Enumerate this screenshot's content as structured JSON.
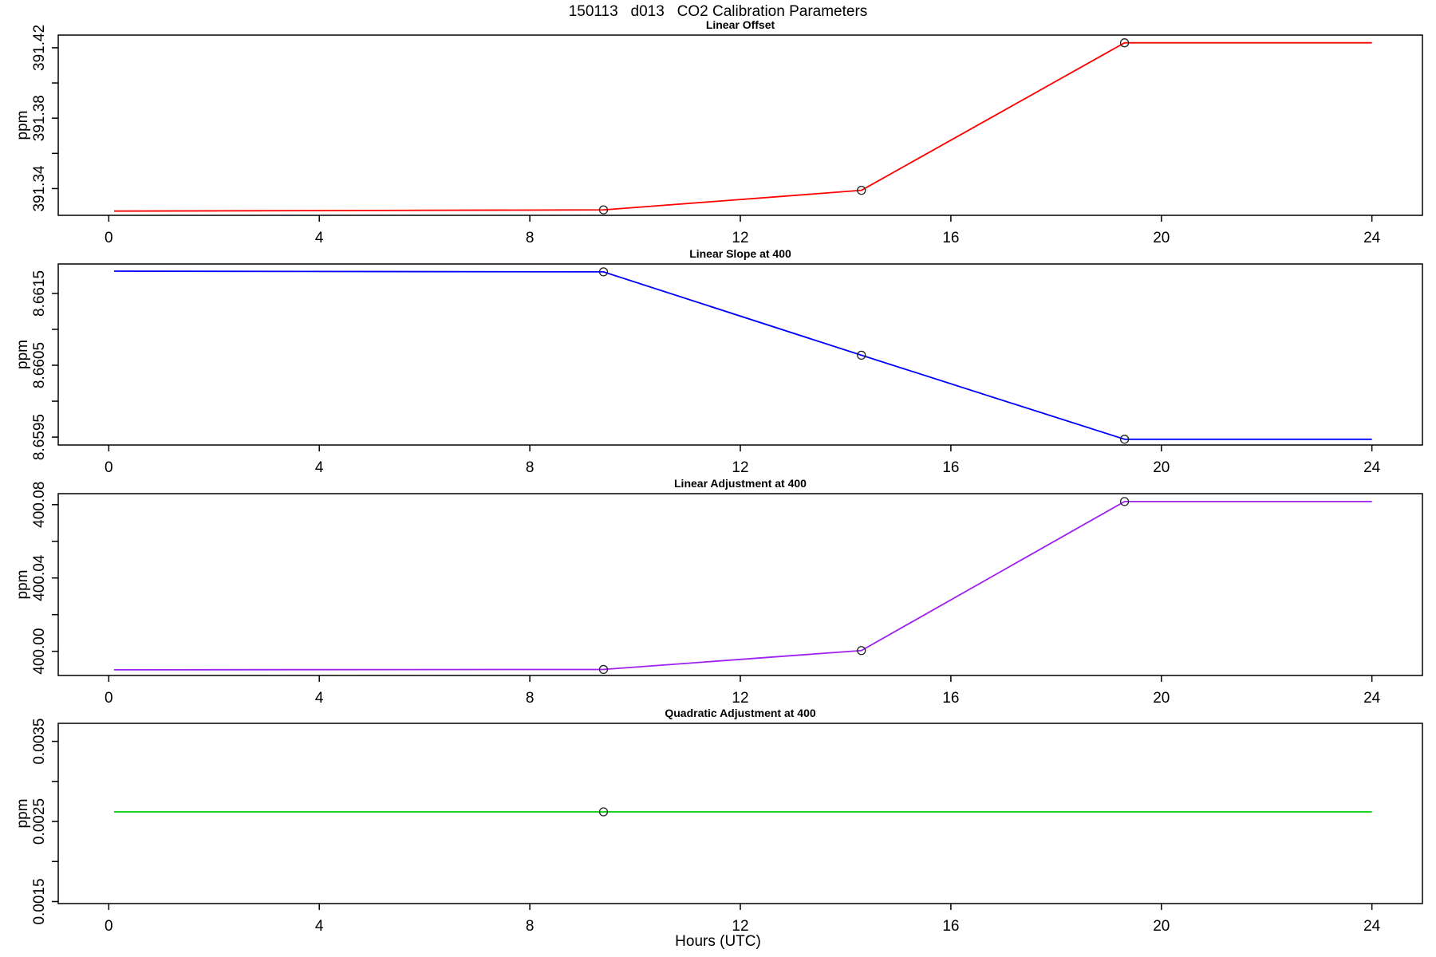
{
  "page": {
    "main_title": "150113   d013   CO2 Calibration Parameters",
    "x_axis_title": "Hours (UTC)",
    "background_color": "#FFFFFF",
    "frame_color": "#000000",
    "marker_style": "open-circle",
    "marker_color": "#222222"
  },
  "chart_data": [
    {
      "type": "line",
      "title": "Linear Offset",
      "ylabel": "ppm",
      "line_color": "#FF0000",
      "x": [
        0.1,
        9.4,
        14.3,
        19.3,
        24
      ],
      "y": [
        391.3272,
        391.3279,
        391.339,
        391.4228,
        391.4228
      ],
      "markers": {
        "x": [
          9.4,
          14.3,
          19.3
        ],
        "y": [
          391.3279,
          391.339,
          391.4228
        ]
      },
      "xlim": [
        -0.96,
        24.96
      ],
      "ylim": [
        391.3248,
        391.4272
      ],
      "xticks": [
        0,
        4,
        8,
        12,
        16,
        20,
        24
      ],
      "xtick_labels": [
        "0",
        "4",
        "8",
        "12",
        "16",
        "20",
        "24"
      ],
      "yticks": [
        391.34,
        391.36,
        391.38,
        391.4,
        391.42
      ],
      "ytick_labels": [
        "391.34",
        "",
        "391.38",
        "",
        "391.42"
      ],
      "grid": false,
      "legend": "none"
    },
    {
      "type": "line",
      "title": "Linear Slope at 400",
      "ylabel": "ppm",
      "line_color": "#0000FF",
      "x": [
        0.1,
        9.4,
        14.3,
        19.3,
        24
      ],
      "y": [
        8.66181,
        8.6618,
        8.66064,
        8.65947,
        8.65947
      ],
      "markers": {
        "x": [
          9.4,
          14.3,
          19.3
        ],
        "y": [
          8.6618,
          8.66064,
          8.65947
        ]
      },
      "xlim": [
        -0.96,
        24.96
      ],
      "ylim": [
        8.65939,
        8.66191
      ],
      "xticks": [
        0,
        4,
        8,
        12,
        16,
        20,
        24
      ],
      "xtick_labels": [
        "0",
        "4",
        "8",
        "12",
        "16",
        "20",
        "24"
      ],
      "yticks": [
        8.6595,
        8.66,
        8.6605,
        8.661,
        8.6615
      ],
      "ytick_labels": [
        "8.6595",
        "",
        "8.6605",
        "",
        "8.6615"
      ],
      "grid": false,
      "legend": "none"
    },
    {
      "type": "line",
      "title": "Linear Adjustment at 400",
      "ylabel": "ppm",
      "line_color": "#A020F0",
      "x": [
        0.1,
        9.4,
        14.3,
        19.3,
        24
      ],
      "y": [
        399.9899,
        399.9901,
        400.0004,
        400.0817,
        400.0817
      ],
      "markers": {
        "x": [
          9.4,
          14.3,
          19.3
        ],
        "y": [
          399.9901,
          400.0004,
          400.0817
        ]
      },
      "xlim": [
        -0.96,
        24.96
      ],
      "ylim": [
        399.9868,
        400.086
      ],
      "xticks": [
        0,
        4,
        8,
        12,
        16,
        20,
        24
      ],
      "xtick_labels": [
        "0",
        "4",
        "8",
        "12",
        "16",
        "20",
        "24"
      ],
      "yticks": [
        400.0,
        400.02,
        400.04,
        400.06,
        400.08
      ],
      "ytick_labels": [
        "400.00",
        "",
        "400.04",
        "",
        "400.08"
      ],
      "grid": false,
      "legend": "none"
    },
    {
      "type": "line",
      "title": "Quadratic Adjustment at 400",
      "ylabel": "ppm",
      "line_color": "#00CC00",
      "x": [
        0.1,
        24
      ],
      "y": [
        0.00262,
        0.00262
      ],
      "markers": {
        "x": [
          9.4
        ],
        "y": [
          0.00262
        ]
      },
      "xlim": [
        -0.96,
        24.96
      ],
      "ylim": [
        0.001475,
        0.003725
      ],
      "xticks": [
        0,
        4,
        8,
        12,
        16,
        20,
        24
      ],
      "xtick_labels": [
        "0",
        "4",
        "8",
        "12",
        "16",
        "20",
        "24"
      ],
      "yticks": [
        0.0015,
        0.002,
        0.0025,
        0.003,
        0.0035
      ],
      "ytick_labels": [
        "0.0015",
        "",
        "0.0025",
        "",
        "0.0035"
      ],
      "grid": false,
      "legend": "none"
    }
  ]
}
